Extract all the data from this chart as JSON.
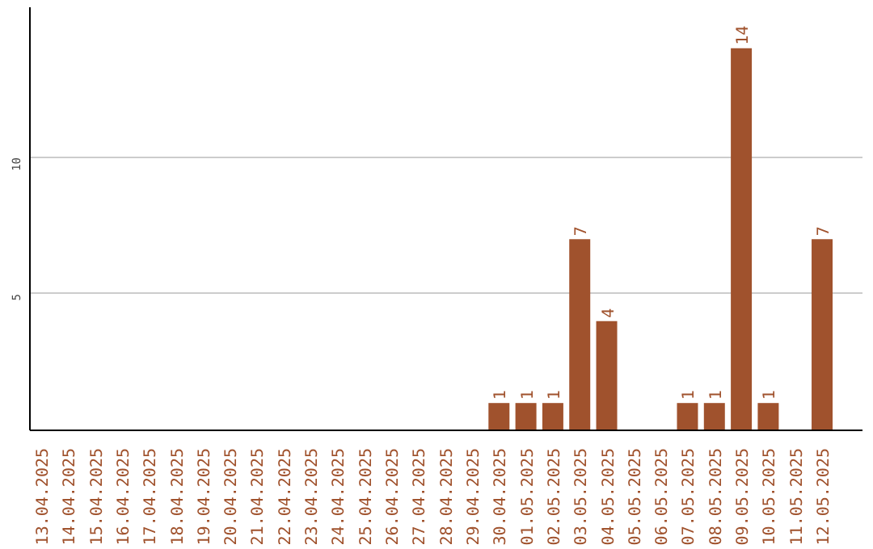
{
  "chart_data": {
    "type": "bar",
    "categories": [
      "13.04.2025",
      "14.04.2025",
      "15.04.2025",
      "16.04.2025",
      "17.04.2025",
      "18.04.2025",
      "19.04.2025",
      "20.04.2025",
      "21.04.2025",
      "22.04.2025",
      "23.04.2025",
      "24.04.2025",
      "25.04.2025",
      "26.04.2025",
      "27.04.2025",
      "28.04.2025",
      "29.04.2025",
      "30.04.2025",
      "01.05.2025",
      "02.05.2025",
      "03.05.2025",
      "04.05.2025",
      "05.05.2025",
      "06.05.2025",
      "07.05.2025",
      "08.05.2025",
      "09.05.2025",
      "10.05.2025",
      "11.05.2025",
      "12.05.2025"
    ],
    "values": [
      0,
      0,
      0,
      0,
      0,
      0,
      0,
      0,
      0,
      0,
      0,
      0,
      0,
      0,
      0,
      0,
      0,
      1,
      1,
      1,
      7,
      4,
      0,
      0,
      1,
      1,
      14,
      1,
      0,
      7
    ],
    "value_labels": [
      null,
      null,
      null,
      null,
      null,
      null,
      null,
      null,
      null,
      null,
      null,
      null,
      null,
      null,
      null,
      null,
      null,
      "1",
      "1",
      "1",
      "7",
      "4",
      null,
      null,
      "1",
      "1",
      "14",
      "1",
      null,
      "7"
    ],
    "color": "#a0522d",
    "ylim": [
      0,
      15.5
    ],
    "yticks": [
      5,
      10
    ],
    "grid": "y"
  }
}
